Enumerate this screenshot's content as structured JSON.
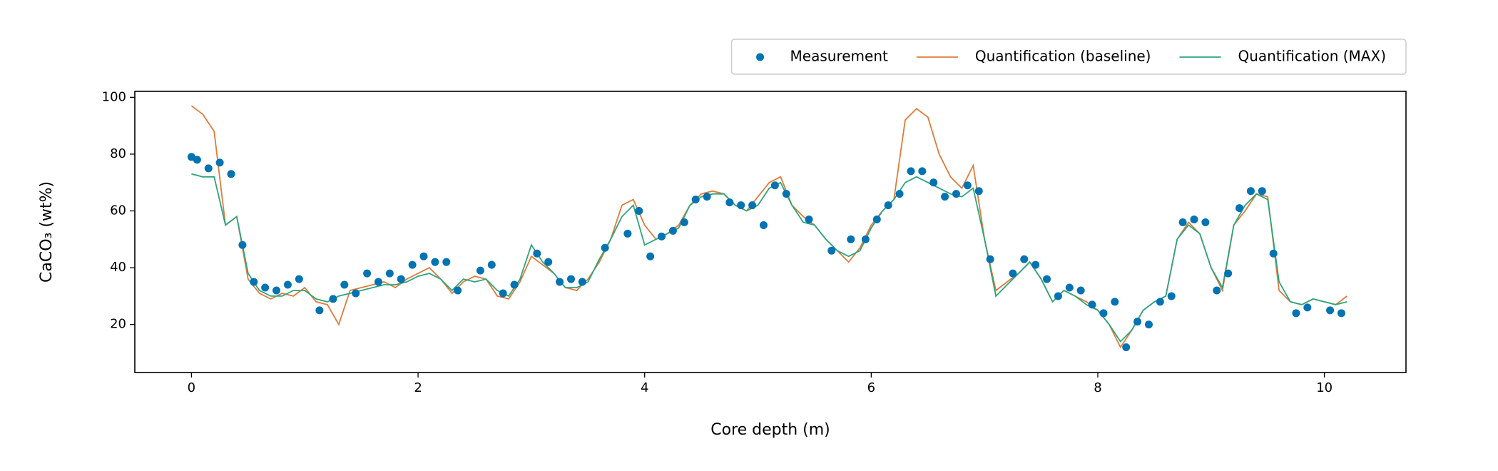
{
  "chart_data": {
    "type": "line",
    "xlabel": "Core depth (m)",
    "ylabel": "CaCO₃ (wt%)",
    "xlim": [
      -0.5,
      10.72
    ],
    "ylim": [
      3.1,
      102.1
    ],
    "xticks": [
      0,
      2,
      4,
      6,
      8,
      10
    ],
    "yticks": [
      20,
      40,
      60,
      80,
      100
    ],
    "grid": false,
    "legend": "top-right",
    "x": [
      0,
      0.1,
      0.2,
      0.3,
      0.4,
      0.5,
      0.6,
      0.7,
      0.8,
      0.9,
      1.0,
      1.1,
      1.2,
      1.3,
      1.4,
      1.5,
      1.6,
      1.7,
      1.8,
      1.9,
      2.0,
      2.1,
      2.2,
      2.3,
      2.4,
      2.5,
      2.6,
      2.7,
      2.8,
      2.9,
      3.0,
      3.1,
      3.2,
      3.3,
      3.4,
      3.5,
      3.6,
      3.7,
      3.8,
      3.9,
      4.0,
      4.1,
      4.2,
      4.3,
      4.4,
      4.5,
      4.6,
      4.7,
      4.8,
      4.9,
      5.0,
      5.1,
      5.2,
      5.3,
      5.4,
      5.5,
      5.6,
      5.7,
      5.8,
      5.9,
      6.0,
      6.1,
      6.2,
      6.3,
      6.4,
      6.5,
      6.6,
      6.7,
      6.8,
      6.9,
      7.0,
      7.1,
      7.2,
      7.3,
      7.4,
      7.5,
      7.6,
      7.7,
      7.8,
      7.9,
      8.0,
      8.1,
      8.2,
      8.3,
      8.4,
      8.5,
      8.6,
      8.7,
      8.8,
      8.9,
      9.0,
      9.1,
      9.2,
      9.3,
      9.4,
      9.5,
      9.6,
      9.7,
      9.8,
      9.9,
      10.0,
      10.1,
      10.2
    ],
    "series": [
      {
        "name": "Measurement",
        "type": "scatter",
        "color": "#0173b2",
        "x": [
          0,
          0.05,
          0.15,
          0.25,
          0.35,
          0.45,
          0.55,
          0.65,
          0.75,
          0.85,
          0.95,
          1.13,
          1.25,
          1.35,
          1.45,
          1.55,
          1.65,
          1.75,
          1.85,
          1.95,
          2.05,
          2.15,
          2.25,
          2.35,
          2.55,
          2.65,
          2.75,
          2.85,
          3.05,
          3.15,
          3.25,
          3.35,
          3.45,
          3.65,
          3.85,
          3.95,
          4.05,
          4.15,
          4.25,
          4.35,
          4.45,
          4.55,
          4.75,
          4.85,
          4.95,
          5.05,
          5.15,
          5.25,
          5.45,
          5.65,
          5.82,
          5.95,
          6.05,
          6.15,
          6.25,
          6.35,
          6.45,
          6.55,
          6.65,
          6.75,
          6.85,
          6.95,
          7.05,
          7.25,
          7.35,
          7.45,
          7.55,
          7.65,
          7.75,
          7.85,
          7.95,
          8.05,
          8.15,
          8.25,
          8.35,
          8.45,
          8.55,
          8.65,
          8.75,
          8.85,
          8.95,
          9.05,
          9.15,
          9.25,
          9.35,
          9.45,
          9.55,
          9.75,
          9.85,
          10.05,
          10.15
        ],
        "values": [
          79,
          78,
          75,
          77,
          73,
          48,
          35,
          33,
          32,
          34,
          36,
          25,
          29,
          34,
          31,
          38,
          35,
          38,
          36,
          41,
          44,
          42,
          42,
          32,
          39,
          41,
          31,
          34,
          45,
          42,
          35,
          36,
          35,
          47,
          52,
          60,
          44,
          51,
          53,
          56,
          64,
          65,
          63,
          62,
          62,
          55,
          69,
          66,
          57,
          46,
          50,
          50,
          57,
          62,
          66,
          74,
          74,
          70,
          65,
          66,
          69,
          67,
          43,
          38,
          43,
          41,
          36,
          30,
          33,
          32,
          27,
          24,
          28,
          12,
          21,
          20,
          28,
          30,
          56,
          57,
          56,
          32,
          38,
          61,
          67,
          67,
          45,
          24,
          26,
          25,
          24
        ]
      },
      {
        "name": "Quantification (baseline)",
        "type": "line",
        "color": "#e07b39",
        "values": [
          97,
          94,
          88,
          55,
          58,
          36,
          31,
          29,
          31,
          30,
          33,
          28,
          27,
          20,
          32,
          33,
          34,
          35,
          33,
          36,
          38,
          40,
          36,
          31,
          35,
          37,
          36,
          30,
          29,
          35,
          44,
          41,
          38,
          33,
          32,
          36,
          42,
          50,
          62,
          64,
          55,
          50,
          52,
          55,
          62,
          66,
          67,
          66,
          62,
          60,
          65,
          70,
          72,
          62,
          58,
          55,
          50,
          46,
          42,
          47,
          55,
          60,
          64,
          92,
          96,
          93,
          80,
          72,
          68,
          76,
          50,
          32,
          35,
          38,
          42,
          36,
          28,
          32,
          30,
          28,
          25,
          20,
          12,
          18,
          25,
          28,
          30,
          50,
          56,
          52,
          40,
          32,
          55,
          60,
          66,
          65,
          32,
          28,
          27,
          29,
          28,
          27,
          30
        ]
      },
      {
        "name": "Quantification (MAX)",
        "type": "line",
        "color": "#2ca57f",
        "values": [
          73,
          72,
          72,
          55,
          58,
          38,
          32,
          30,
          30,
          32,
          32,
          29,
          28,
          30,
          31,
          32,
          33,
          34,
          34,
          35,
          37,
          38,
          36,
          32,
          36,
          35,
          36,
          32,
          30,
          36,
          48,
          42,
          38,
          33,
          33,
          35,
          43,
          50,
          58,
          62,
          48,
          50,
          52,
          54,
          62,
          65,
          66,
          66,
          62,
          60,
          62,
          68,
          70,
          62,
          56,
          55,
          50,
          46,
          44,
          46,
          54,
          60,
          64,
          70,
          72,
          70,
          68,
          66,
          65,
          68,
          50,
          30,
          34,
          38,
          42,
          36,
          28,
          32,
          30,
          27,
          25,
          20,
          14,
          18,
          25,
          28,
          30,
          50,
          55,
          52,
          40,
          33,
          55,
          62,
          66,
          64,
          35,
          28,
          27,
          29,
          28,
          27,
          28
        ]
      }
    ]
  }
}
